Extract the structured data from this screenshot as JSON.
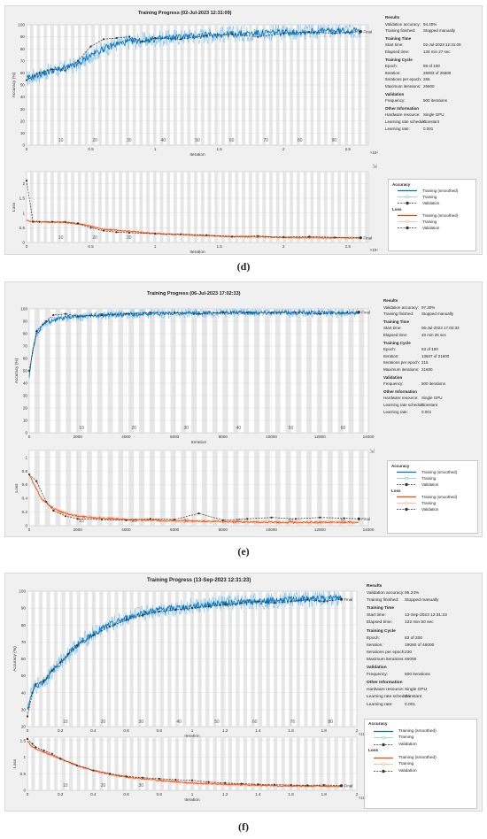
{
  "captions": [
    "(d)",
    "(e)",
    "(f)"
  ],
  "colors": {
    "accuracy": "#0072bd",
    "accuracy_raw": "#7fc4ef",
    "loss": "#ff4500",
    "loss_raw": "#ffb08a",
    "validation": "#333333"
  },
  "panels": [
    {
      "title": "Training Progress (02-Jul-2023 12:31:09)",
      "info": {
        "results": "Results",
        "validation_accuracy": {
          "k": "Validation accuracy:",
          "v": "94.40%"
        },
        "training_finished": {
          "k": "Training finished:",
          "v": "Stopped manually"
        },
        "training_time": "Training Time",
        "start_time": {
          "k": "Start time:",
          "v": "02-Jul-2023 12:31:09"
        },
        "elapsed_time": {
          "k": "Elapsed time:",
          "v": "134 min 27 sec"
        },
        "training_cycle": "Training Cycle",
        "epoch": {
          "k": "Epoch:",
          "v": "98 of 100"
        },
        "iteration": {
          "k": "Iteration:",
          "v": "26003 of 26600"
        },
        "iterations_per_epoch": {
          "k": "Iterations per epoch:",
          "v": "266"
        },
        "maximum_iterations": {
          "k": "Maximum iterations:",
          "v": "26600"
        },
        "validation": "Validation",
        "frequency": {
          "k": "Frequency:",
          "v": "500 iterations"
        },
        "other_information": "Other Information",
        "hardware": {
          "k": "Hardware resource:",
          "v": "Single GPU"
        },
        "schedule": {
          "k": "Learning rate schedule:",
          "v": "Constant"
        },
        "learning_rate": {
          "k": "Learning rate:",
          "v": "0.001"
        }
      },
      "legend": {
        "accuracy": "Accuracy",
        "loss": "Loss",
        "smoothed": "Training (smoothed)",
        "training": "Training",
        "validation": "Validation"
      }
    },
    {
      "title": "Training Progress (06-Jul-2023 17:02:33)",
      "info": {
        "results": "Results",
        "validation_accuracy": {
          "k": "Validation accuracy:",
          "v": "97.30%"
        },
        "training_finished": {
          "k": "Training finished:",
          "v": "Stopped manually"
        },
        "training_time": "Training Time",
        "start_time": {
          "k": "Start time:",
          "v": "06-Jul-2023 17:02:33"
        },
        "elapsed_time": {
          "k": "Elapsed time:",
          "v": "40 min 26 sec"
        },
        "training_cycle": "Training Cycle",
        "epoch": {
          "k": "Epoch:",
          "v": "63 of 100"
        },
        "iteration": {
          "k": "Iteration:",
          "v": "13607 of 21600"
        },
        "iterations_per_epoch": {
          "k": "Iterations per epoch:",
          "v": "216"
        },
        "maximum_iterations": {
          "k": "Maximum iterations:",
          "v": "21600"
        },
        "validation": "Validation",
        "frequency": {
          "k": "Frequency:",
          "v": "500 iterations"
        },
        "other_information": "Other Information",
        "hardware": {
          "k": "Hardware resource:",
          "v": "Single GPU"
        },
        "schedule": {
          "k": "Learning rate schedule:",
          "v": "Constant"
        },
        "learning_rate": {
          "k": "Learning rate:",
          "v": "0.001"
        }
      },
      "legend": {
        "accuracy": "Accuracy",
        "loss": "Loss",
        "smoothed": "Training (smoothed)",
        "training": "Training",
        "validation": "Validation"
      }
    },
    {
      "title": "Training Progress (13-Sep-2023 12:31:23)",
      "info": {
        "results": "Results",
        "validation_accuracy": {
          "k": "Validation accuracy:",
          "v": "95.24%"
        },
        "training_finished": {
          "k": "Training finished:",
          "v": "Stopped manually"
        },
        "training_time": "Training Time",
        "start_time": {
          "k": "Start time:",
          "v": "13-Sep-2023 12:31:23"
        },
        "elapsed_time": {
          "k": "Elapsed time:",
          "v": "132 min 50 sec"
        },
        "training_cycle": "Training Cycle",
        "epoch": {
          "k": "Epoch:",
          "v": "83 of 200"
        },
        "iteration": {
          "k": "Iteration:",
          "v": "19060 of 46000"
        },
        "iterations_per_epoch": {
          "k": "Iterations per epoch:",
          "v": "230"
        },
        "maximum_iterations": {
          "k": "Maximum iterations:",
          "v": "46000"
        },
        "validation": "Validation",
        "frequency": {
          "k": "Frequency:",
          "v": "500 iterations"
        },
        "other_information": "Other Information",
        "hardware": {
          "k": "Hardware resource:",
          "v": "Single GPU"
        },
        "schedule": {
          "k": "Learning rate schedule:",
          "v": "Constant"
        },
        "learning_rate": {
          "k": "Learning rate:",
          "v": "0.001"
        }
      },
      "legend": {
        "accuracy": "Accuracy",
        "loss": "Loss",
        "smoothed": "Training (smoothed)",
        "training": "Training",
        "validation": "Validation"
      }
    }
  ],
  "chart_data": [
    {
      "type": "line",
      "panel": 0,
      "metric": "accuracy",
      "xlabel": "Iteration",
      "ylabel": "Accuracy (%)",
      "xlim": [
        0,
        26600
      ],
      "ylim": [
        0,
        100
      ],
      "x_exponent": "×10⁴",
      "xticks": [
        0,
        5000,
        10000,
        15000,
        20000,
        25000
      ],
      "xticklabels": [
        "0",
        "0.5",
        "1",
        "1.5",
        "2",
        "2.5"
      ],
      "yticks": [
        0,
        10,
        20,
        30,
        40,
        50,
        60,
        70,
        80,
        90,
        100
      ],
      "epoch_labels": [
        {
          "x": 2660,
          "t": "10"
        },
        {
          "x": 5320,
          "t": "20"
        },
        {
          "x": 7980,
          "t": "30"
        },
        {
          "x": 10640,
          "t": "40"
        },
        {
          "x": 13300,
          "t": "50"
        },
        {
          "x": 15960,
          "t": "60"
        },
        {
          "x": 18620,
          "t": "70"
        },
        {
          "x": 21280,
          "t": "80"
        },
        {
          "x": 23940,
          "t": "90"
        }
      ],
      "iterations_per_epoch": 266,
      "final_label": "Final",
      "noise": 7,
      "smoothed": {
        "x": [
          0,
          800,
          2000,
          3000,
          4000,
          5000,
          6000,
          7000,
          8000,
          10000,
          12000,
          15000,
          18000,
          21000,
          24000,
          26003
        ],
        "y": [
          55,
          58,
          62,
          64,
          67,
          75,
          80,
          84,
          86,
          88,
          90,
          92,
          93,
          94,
          95,
          95
        ]
      },
      "validation": {
        "x": [
          0,
          1000,
          2000,
          3000,
          4000,
          5000,
          6000,
          7000,
          8000,
          9000,
          10000,
          12000,
          14000,
          16000,
          18000,
          20000,
          22000,
          24000,
          26003
        ],
        "y": [
          54,
          60,
          63,
          62,
          70,
          82,
          88,
          89,
          90,
          86,
          89,
          88,
          91,
          92,
          90,
          93,
          94,
          93,
          94.4
        ]
      }
    },
    {
      "type": "line",
      "panel": 0,
      "metric": "loss",
      "xlabel": "Iteration",
      "ylabel": "Loss",
      "xlim": [
        0,
        26600
      ],
      "ylim": [
        0,
        2.4
      ],
      "x_exponent": "×10⁴",
      "xticks": [
        0,
        5000,
        10000,
        15000,
        20000,
        25000
      ],
      "xticklabels": [
        "0",
        "0.5",
        "1",
        "1.5",
        "2",
        "2.5"
      ],
      "yticks": [
        0,
        0.5,
        1,
        1.5,
        2
      ],
      "yticklabels": [
        "0",
        "0.5",
        "1",
        "1.5",
        "2"
      ],
      "epoch_labels": [
        {
          "x": 2660,
          "t": "10"
        },
        {
          "x": 5320,
          "t": "20"
        },
        {
          "x": 7980,
          "t": "30"
        }
      ],
      "iterations_per_epoch": 266,
      "final_label": "Final",
      "noise": 0.05,
      "smoothed": {
        "x": [
          0,
          300,
          1000,
          3000,
          4500,
          6000,
          8000,
          10000,
          13000,
          16000,
          20000,
          26003
        ],
        "y": [
          0.75,
          0.72,
          0.7,
          0.68,
          0.6,
          0.45,
          0.38,
          0.3,
          0.25,
          0.2,
          0.17,
          0.15
        ]
      },
      "validation": {
        "x": [
          0,
          500,
          1000,
          2000,
          3000,
          4000,
          5000,
          6000,
          7000,
          8000,
          10000,
          12000,
          14000,
          16000,
          18000,
          20000,
          22000,
          24000,
          26003
        ],
        "y": [
          2.1,
          0.7,
          0.7,
          0.7,
          0.7,
          0.65,
          0.5,
          0.4,
          0.35,
          0.33,
          0.3,
          0.28,
          0.25,
          0.2,
          0.22,
          0.18,
          0.2,
          0.17,
          0.16
        ]
      }
    },
    {
      "type": "line",
      "panel": 1,
      "metric": "accuracy",
      "xlabel": "Iteration",
      "ylabel": "Accuracy (%)",
      "xlim": [
        0,
        14000
      ],
      "ylim": [
        0,
        100
      ],
      "xticks": [
        0,
        2000,
        4000,
        6000,
        8000,
        10000,
        12000,
        14000
      ],
      "xticklabels": [
        "0",
        "2000",
        "4000",
        "6000",
        "8000",
        "10000",
        "12000",
        "14000"
      ],
      "yticks": [
        0,
        10,
        20,
        30,
        40,
        50,
        60,
        70,
        80,
        90,
        100
      ],
      "epoch_labels": [
        {
          "x": 2160,
          "t": "10"
        },
        {
          "x": 4320,
          "t": "20"
        },
        {
          "x": 6480,
          "t": "30"
        },
        {
          "x": 8640,
          "t": "40"
        },
        {
          "x": 10800,
          "t": "50"
        },
        {
          "x": 12960,
          "t": "60"
        }
      ],
      "iterations_per_epoch": 216,
      "final_label": "Final",
      "noise": 4,
      "smoothed": {
        "x": [
          0,
          100,
          300,
          600,
          1000,
          1500,
          2000,
          3000,
          5000,
          8000,
          11000,
          13607
        ],
        "y": [
          45,
          62,
          80,
          88,
          91,
          93,
          94,
          95,
          96,
          97,
          97,
          97
        ]
      },
      "validation": {
        "x": [
          0,
          300,
          700,
          1000,
          1500,
          2000,
          3000,
          4000,
          5000,
          6000,
          7000,
          8000,
          9000,
          10000,
          11000,
          12000,
          13607
        ],
        "y": [
          50,
          82,
          90,
          95,
          96,
          94,
          95,
          96,
          97,
          97,
          96,
          97,
          97,
          97,
          97,
          96,
          97.3
        ]
      }
    },
    {
      "type": "line",
      "panel": 1,
      "metric": "loss",
      "xlabel": "",
      "ylabel": "Loss",
      "xlim": [
        0,
        14000
      ],
      "ylim": [
        0,
        1.1
      ],
      "xticks": [
        0,
        2000,
        4000,
        6000,
        8000,
        10000,
        12000,
        14000
      ],
      "xticklabels": [
        "0",
        "2000",
        "4000",
        "6000",
        "8000",
        "10000",
        "12000",
        "14000"
      ],
      "yticks": [
        0,
        0.2,
        0.4,
        0.6,
        0.8,
        1
      ],
      "yticklabels": [
        "0",
        "0.2",
        "0.4",
        "0.6",
        "0.8",
        "1"
      ],
      "epoch_labels": [
        {
          "x": 2160,
          "t": "10"
        },
        {
          "x": 4320,
          "t": "20"
        },
        {
          "x": 6480,
          "t": "30"
        },
        {
          "x": 8640,
          "t": "40"
        },
        {
          "x": 10800,
          "t": "50"
        },
        {
          "x": 12960,
          "t": "60"
        }
      ],
      "iterations_per_epoch": 216,
      "final_label": "Final",
      "noise": 0.03,
      "smoothed": {
        "x": [
          0,
          200,
          500,
          1000,
          1500,
          2000,
          3000,
          4000,
          6000,
          8000,
          10000,
          13607
        ],
        "y": [
          0.75,
          0.6,
          0.4,
          0.25,
          0.18,
          0.14,
          0.11,
          0.09,
          0.07,
          0.06,
          0.05,
          0.05
        ]
      },
      "validation": {
        "x": [
          0,
          300,
          700,
          1000,
          1500,
          2000,
          3000,
          4000,
          5000,
          6000,
          7000,
          8000,
          9000,
          10000,
          11000,
          12000,
          13000,
          13607
        ],
        "y": [
          0.75,
          0.65,
          0.35,
          0.22,
          0.14,
          0.1,
          0.09,
          0.08,
          0.1,
          0.09,
          0.18,
          0.08,
          0.1,
          0.12,
          0.1,
          0.12,
          0.11,
          0.1
        ]
      }
    },
    {
      "type": "line",
      "panel": 2,
      "metric": "accuracy",
      "xlabel": "Iteration",
      "ylabel": "Accuracy (%)",
      "xlim": [
        0,
        20000
      ],
      "ylim": [
        20,
        100
      ],
      "x_exponent": "×10⁴",
      "xticks": [
        0,
        2000,
        4000,
        6000,
        8000,
        10000,
        12000,
        14000,
        16000,
        18000,
        20000
      ],
      "xticklabels": [
        "0",
        "0.2",
        "0.4",
        "0.6",
        "0.8",
        "1",
        "1.2",
        "1.4",
        "1.6",
        "1.8",
        "2"
      ],
      "yticks": [
        20,
        30,
        40,
        50,
        60,
        70,
        80,
        90,
        100
      ],
      "epoch_labels": [
        {
          "x": 2300,
          "t": "10"
        },
        {
          "x": 4600,
          "t": "20"
        },
        {
          "x": 6900,
          "t": "30"
        },
        {
          "x": 9200,
          "t": "40"
        },
        {
          "x": 11500,
          "t": "50"
        },
        {
          "x": 13800,
          "t": "60"
        },
        {
          "x": 16100,
          "t": "70"
        },
        {
          "x": 18400,
          "t": "80"
        }
      ],
      "iterations_per_epoch": 230,
      "final_label": "Final",
      "noise": 5,
      "smoothed": {
        "x": [
          0,
          200,
          500,
          1000,
          2000,
          3000,
          4000,
          5000,
          6000,
          7000,
          8000,
          10000,
          12000,
          14000,
          16000,
          19060
        ],
        "y": [
          30,
          38,
          44,
          47,
          58,
          68,
          75,
          80,
          84,
          87,
          89,
          91,
          93,
          94,
          95,
          96
        ]
      },
      "validation": {
        "x": [
          0,
          300,
          500,
          1000,
          1500,
          2000,
          2500,
          3000,
          4000,
          5000,
          6000,
          7000,
          8000,
          9000,
          10000,
          11000,
          12000,
          13000,
          14000,
          15000,
          16000,
          17000,
          18000,
          19060
        ],
        "y": [
          26,
          40,
          45,
          47,
          53,
          58,
          63,
          68,
          74,
          79,
          83,
          86,
          88,
          89,
          90,
          91,
          92,
          93,
          94,
          93,
          94,
          95,
          94,
          95.24
        ]
      }
    },
    {
      "type": "line",
      "panel": 2,
      "metric": "loss",
      "xlabel": "Iteration",
      "ylabel": "Loss",
      "xlim": [
        0,
        20000
      ],
      "ylim": [
        0,
        1.6
      ],
      "x_exponent": "×10⁴",
      "xticks": [
        0,
        2000,
        4000,
        6000,
        8000,
        10000,
        12000,
        14000,
        16000,
        18000,
        20000
      ],
      "xticklabels": [
        "0",
        "0.2",
        "0.4",
        "0.6",
        "0.8",
        "1",
        "1.2",
        "1.4",
        "1.6",
        "1.8",
        "2"
      ],
      "yticks": [
        0,
        0.5,
        1,
        1.5
      ],
      "yticklabels": [
        "0",
        "0.5",
        "1",
        "1.5"
      ],
      "epoch_labels": [
        {
          "x": 2300,
          "t": "10"
        },
        {
          "x": 4600,
          "t": "20"
        },
        {
          "x": 6900,
          "t": "30"
        }
      ],
      "iterations_per_epoch": 230,
      "final_label": "Final",
      "noise": 0.05,
      "smoothed": {
        "x": [
          0,
          200,
          500,
          1000,
          2000,
          3000,
          4000,
          5000,
          6000,
          8000,
          10000,
          12000,
          14000,
          16000,
          19060
        ],
        "y": [
          1.5,
          1.35,
          1.25,
          1.15,
          0.95,
          0.75,
          0.6,
          0.48,
          0.4,
          0.3,
          0.22,
          0.18,
          0.15,
          0.13,
          0.12
        ]
      },
      "validation": {
        "x": [
          0,
          300,
          500,
          1000,
          1500,
          2000,
          3000,
          4000,
          5000,
          6000,
          7000,
          8000,
          9000,
          10000,
          11000,
          12000,
          13000,
          14000,
          15000,
          16000,
          17000,
          18000,
          19060
        ],
        "y": [
          1.55,
          1.4,
          1.3,
          1.2,
          1.1,
          0.95,
          0.75,
          0.6,
          0.5,
          0.42,
          0.38,
          0.35,
          0.32,
          0.3,
          0.25,
          0.22,
          0.2,
          0.18,
          0.17,
          0.16,
          0.15,
          0.16,
          0.14
        ]
      }
    }
  ]
}
